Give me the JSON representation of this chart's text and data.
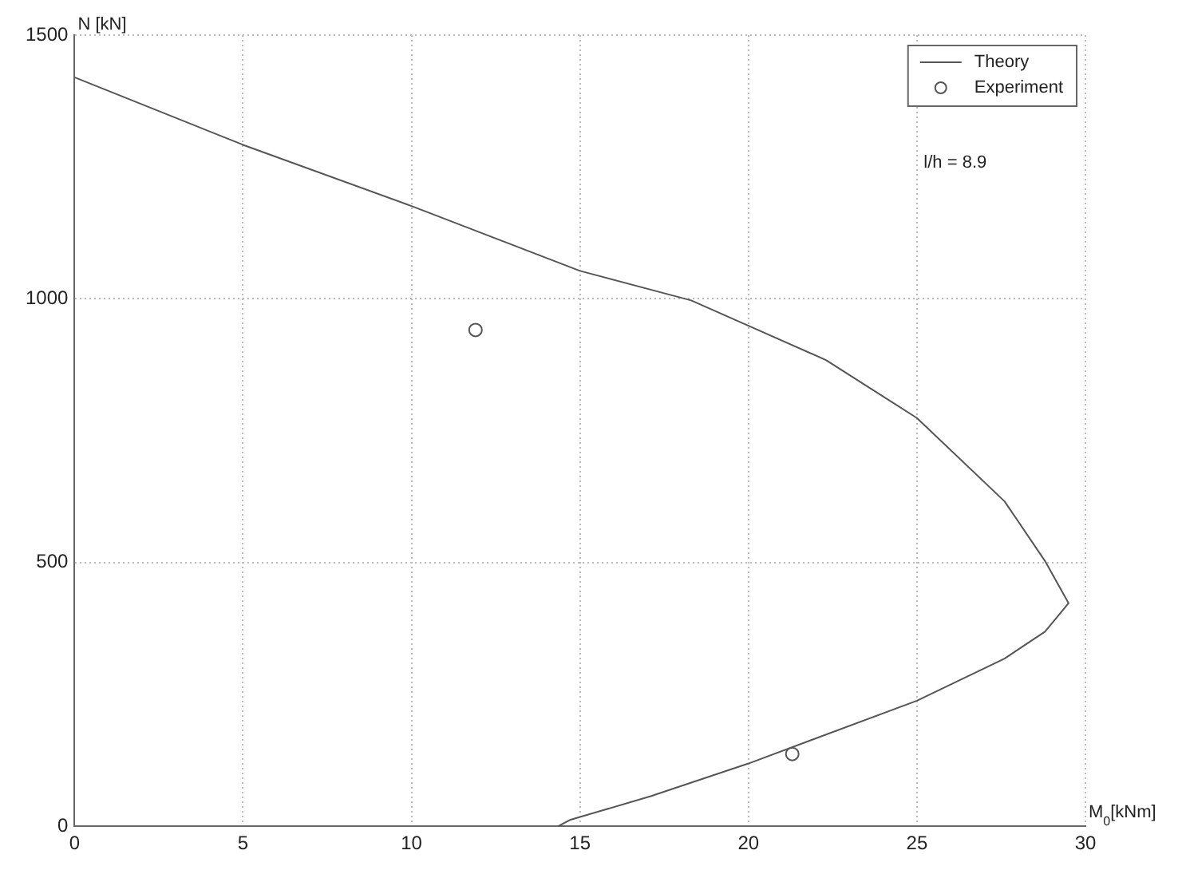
{
  "chart_data": {
    "type": "line",
    "xlabel": "M$_{0}$[kNm]",
    "ylabel": "N [kN]",
    "xlim": [
      0,
      30
    ],
    "ylim": [
      0,
      1500
    ],
    "xticks": [
      0,
      5,
      10,
      15,
      20,
      25,
      30
    ],
    "yticks": [
      0,
      500,
      1000,
      1500
    ],
    "grid": true,
    "legend": "top right",
    "annotations": [
      "l/h = 8.9"
    ],
    "series": [
      {
        "name": "Theory",
        "type": "line",
        "color": "#555555",
        "marker": "none",
        "line_style": "solid",
        "x": [
          0,
          5,
          10,
          15,
          18.3,
          20,
          22.3,
          25,
          27.6,
          28.8,
          29.5,
          28.8,
          27.6,
          25,
          20,
          17.1,
          14.7,
          14.35
        ],
        "values": [
          1420,
          1292,
          1176,
          1053,
          997,
          949,
          884,
          774,
          616,
          503,
          423,
          369,
          318,
          238,
          119,
          57,
          12,
          0
        ]
      },
      {
        "name": "Experiment",
        "type": "scatter",
        "color": "#555555",
        "marker": "circle",
        "x": [
          11.9,
          21.3
        ],
        "values": [
          941,
          137
        ]
      }
    ]
  }
}
